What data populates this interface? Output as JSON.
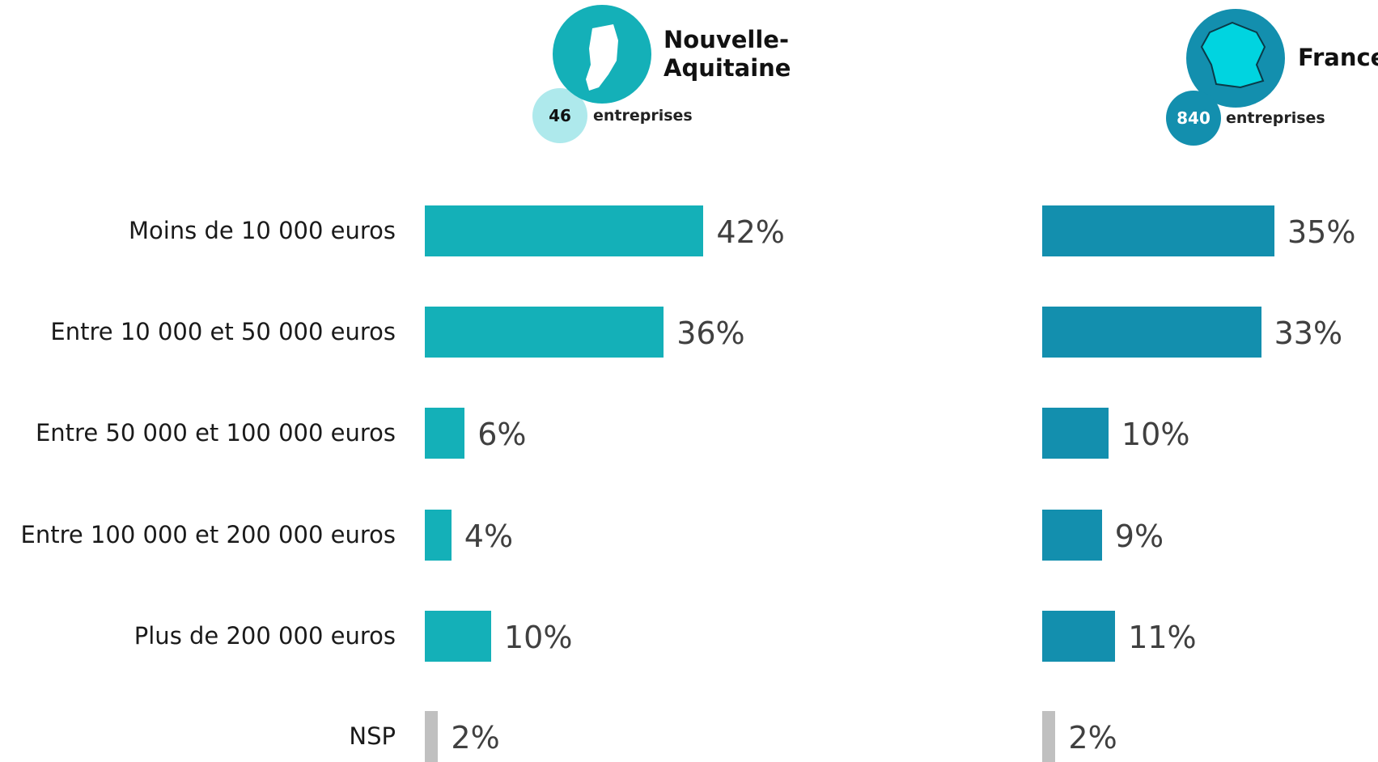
{
  "chart_data": [
    {
      "type": "hbar",
      "title": "Nouvelle-Aquitaine",
      "count": 46,
      "count_label": "entreprises",
      "categories": [
        "Moins de 10 000 euros",
        "Entre 10 000 et 50 000 euros",
        "Entre 50 000 et 100 000 euros",
        "Entre 100 000 et 200 000 euros",
        "Plus de 200 000 euros",
        "NSP"
      ],
      "values": [
        42,
        36,
        6,
        4,
        10,
        2
      ],
      "value_labels": [
        "42%",
        "36%",
        "6%",
        "4%",
        "10%",
        "2%"
      ],
      "colors": [
        "#14b0b8",
        "#14b0b8",
        "#14b0b8",
        "#14b0b8",
        "#14b0b8",
        "#c0c0c0"
      ]
    },
    {
      "type": "hbar",
      "title": "France",
      "count": 840,
      "count_label": "entreprises",
      "values": [
        35,
        33,
        10,
        9,
        11,
        2
      ],
      "value_labels": [
        "35%",
        "33%",
        "10%",
        "9%",
        "11%",
        "2%"
      ],
      "colors": [
        "#138fae",
        "#138fae",
        "#138fae",
        "#138fae",
        "#138fae",
        "#c0c0c0"
      ]
    }
  ]
}
